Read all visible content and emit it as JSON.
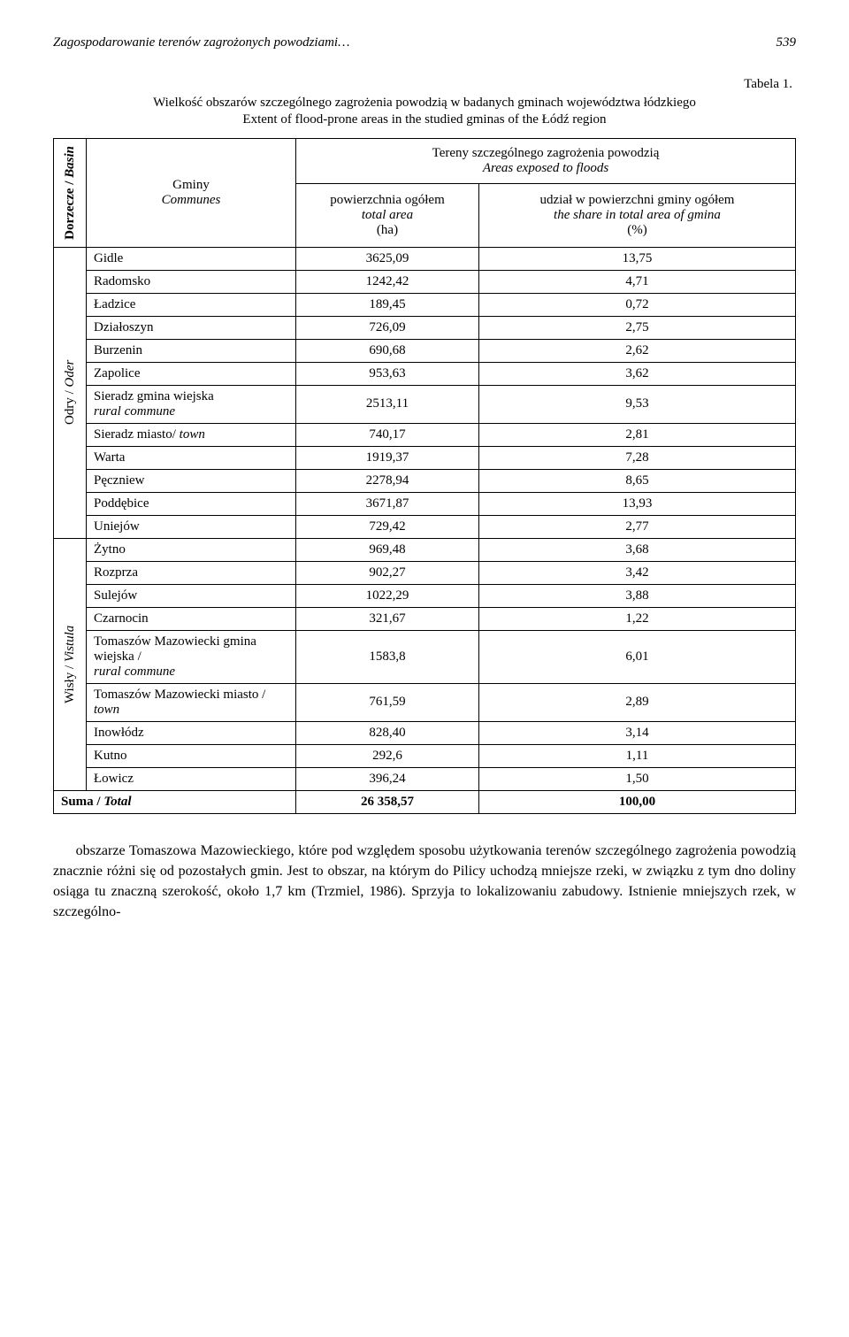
{
  "header": {
    "running_title": "Zagospodarowanie terenów zagrożonych powodziami…",
    "page_number": "539"
  },
  "table": {
    "caption_label": "Tabela 1.",
    "caption_main": "Wielkość obszarów szczególnego zagrożenia powodzią w badanych gminach województwa łódzkiego",
    "caption_sub": "Extent of flood-prone areas in the studied gminas of the Łódź region",
    "col_basin": "Dorzecze / ",
    "col_basin_it": "Basin",
    "col_gminy": "Gminy",
    "col_gminy_it": "Communes",
    "col_top": "Tereny szczególnego zagrożenia powodzią",
    "col_top_it": "Areas exposed to floods",
    "col_area": "powierzchnia ogółem",
    "col_area_it": "total area",
    "col_area_unit": "(ha)",
    "col_share": "udział w powierzchni gminy ogółem",
    "col_share_it": "the share in total area of gmina",
    "col_share_unit": "(%)",
    "basin1": "Odry / ",
    "basin1_it": "Oder",
    "basin2": "Wisły / ",
    "basin2_it": "Vistula",
    "rows_oder": [
      {
        "name": "Gidle",
        "area": "3625,09",
        "share": "13,75"
      },
      {
        "name": "Radomsko",
        "area": "1242,42",
        "share": "4,71"
      },
      {
        "name": "Ładzice",
        "area": "189,45",
        "share": "0,72"
      },
      {
        "name": "Działoszyn",
        "area": "726,09",
        "share": "2,75"
      },
      {
        "name": "Burzenin",
        "area": "690,68",
        "share": "2,62"
      },
      {
        "name": "Zapolice",
        "area": "953,63",
        "share": "3,62"
      },
      {
        "name": "Sieradz gmina wiejska",
        "name_it": "rural commune",
        "area": "2513,11",
        "share": "9,53"
      },
      {
        "name": "Sieradz miasto/ ",
        "name_it_inline": "town",
        "area": "740,17",
        "share": "2,81"
      },
      {
        "name": "Warta",
        "area": "1919,37",
        "share": "7,28"
      },
      {
        "name": "Pęczniew",
        "area": "2278,94",
        "share": "8,65"
      },
      {
        "name": "Poddębice",
        "area": "3671,87",
        "share": "13,93"
      },
      {
        "name": "Uniejów",
        "area": "729,42",
        "share": "2,77"
      }
    ],
    "rows_vistula": [
      {
        "name": "Żytno",
        "area": "969,48",
        "share": "3,68"
      },
      {
        "name": "Rozprza",
        "area": "902,27",
        "share": "3,42"
      },
      {
        "name": "Sulejów",
        "area": "1022,29",
        "share": "3,88"
      },
      {
        "name": "Czarnocin",
        "area": "321,67",
        "share": "1,22"
      },
      {
        "name": "Tomaszów Mazowiecki gmina wiejska / ",
        "name_it": "rural commune",
        "area": "1583,8",
        "share": "6,01"
      },
      {
        "name": "Tomaszów Mazowiecki miasto / ",
        "name_it_inline": "town",
        "area": "761,59",
        "share": "2,89"
      },
      {
        "name": "Inowłódz",
        "area": "828,40",
        "share": "3,14"
      },
      {
        "name": "Kutno",
        "area": "292,6",
        "share": "1,11"
      },
      {
        "name": "Łowicz",
        "area": "396,24",
        "share": "1,50"
      }
    ],
    "total_label": "Suma / ",
    "total_label_it": "Total",
    "total_area": "26 358,57",
    "total_share": "100,00"
  },
  "paragraph": "obszarze Tomaszowa Mazowieckiego, które pod względem sposobu użytkowania terenów szczególnego zagrożenia powodzią znacznie różni się od pozostałych gmin. Jest to obszar, na którym do Pilicy uchodzą mniejsze rzeki, w związku z tym dno doliny osiąga tu znaczną szerokość, około 1,7 km (Trzmiel, 1986). Sprzyja to lokalizowaniu zabudowy. Istnienie mniejszych rzek, w szczególno-"
}
